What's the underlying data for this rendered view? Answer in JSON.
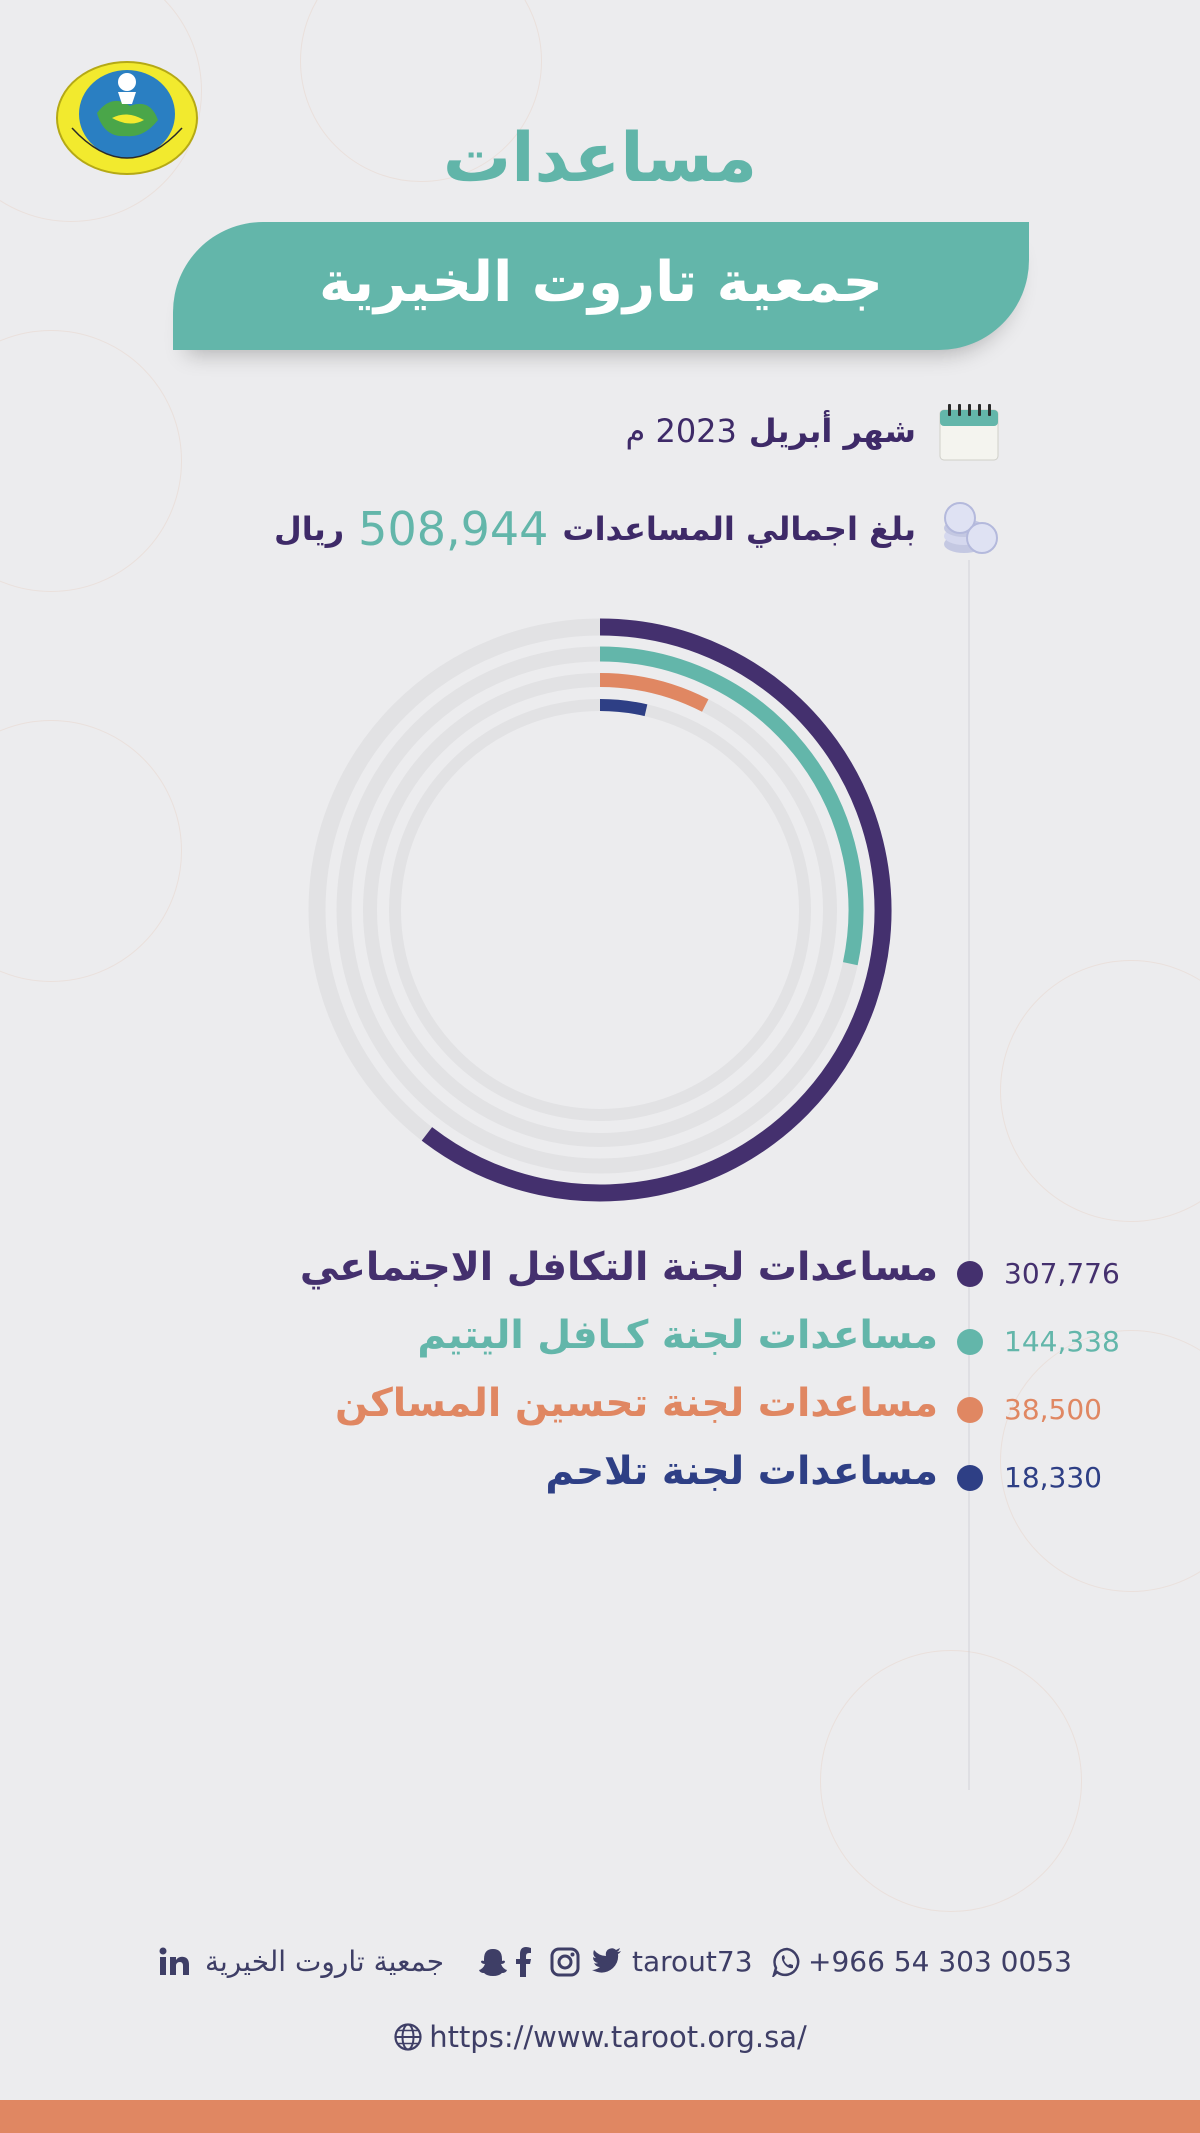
{
  "header": {
    "title": "مساعدات",
    "banner": "جمعية تاروت الخيرية"
  },
  "info": {
    "month_label": "شهر أبريل",
    "year": "2023 م",
    "total_prefix": "بلغ اجمالي المساعدات",
    "total_amount": "508,944",
    "currency": "ريال"
  },
  "chart_data": {
    "type": "radial-bar",
    "total": 508944,
    "series": [
      {
        "name": "مساعدات لجنة التكافل الاجتماعي",
        "value": 307776,
        "color": "#44306e"
      },
      {
        "name": "مساعدات لجنة كـافل اليتيم",
        "value": 144338,
        "color": "#63b6aa"
      },
      {
        "name": "مساعدات لجنة تحسين المساكن",
        "value": 38500,
        "color": "#e08762"
      },
      {
        "name": "مساعدات لجنة تلاحم",
        "value": 18330,
        "color": "#2e3f85"
      }
    ],
    "value_labels": [
      "307,776",
      "144,338",
      "38,500",
      "18,330"
    ],
    "track_color": "#e2e2e4"
  },
  "footer": {
    "org_name": "جمعية تاروت الخيرية",
    "handle": "tarout73",
    "phone": "+966 54 303 0053",
    "website": "https://www.taroot.org.sa/",
    "icons": [
      "linkedin-icon",
      "snapchat-icon",
      "facebook-icon",
      "instagram-icon",
      "twitter-icon",
      "whatsapp-icon",
      "globe-icon"
    ]
  }
}
